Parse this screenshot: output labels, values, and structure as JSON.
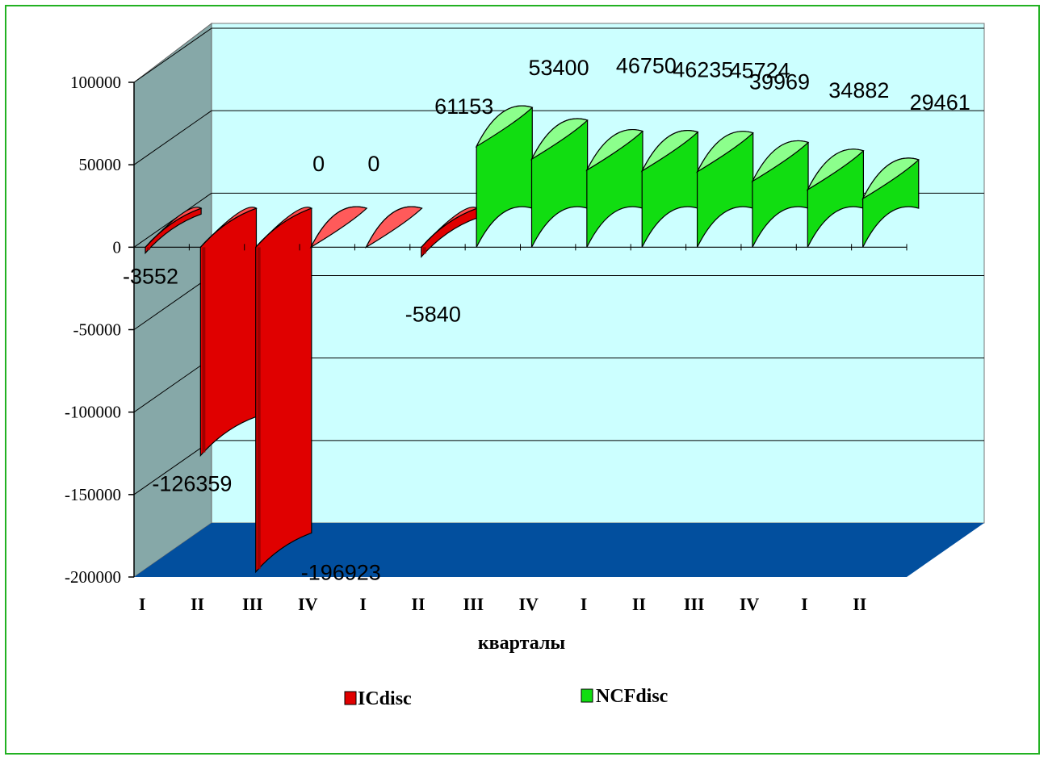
{
  "chart_data": {
    "type": "bar",
    "categories": [
      "I",
      "II",
      "III",
      "IV",
      "I",
      "II",
      "III",
      "IV",
      "I",
      "II",
      "III",
      "IV",
      "I",
      "II"
    ],
    "series": [
      {
        "name": "ICdisc",
        "color": "#e00000",
        "values": [
          -3552,
          -126359,
          -196923,
          0,
          0,
          -5840,
          null,
          null,
          null,
          null,
          null,
          null,
          null,
          null
        ],
        "labels": [
          "-3552",
          "-126359",
          "-196923",
          "0",
          "0",
          "-5840",
          "",
          "",
          "",
          "",
          "",
          "",
          "",
          ""
        ]
      },
      {
        "name": "NCFdisc",
        "color": "#11dd11",
        "values": [
          null,
          null,
          null,
          null,
          null,
          null,
          61153,
          53400,
          46750,
          46235,
          45724,
          39969,
          34882,
          29461
        ],
        "labels": [
          "",
          "",
          "",
          "",
          "",
          "",
          "61153",
          "53400",
          "46750",
          "46235",
          "45724",
          "39969",
          "34882",
          "29461"
        ]
      }
    ],
    "xlabel": "кварталы",
    "ylabel": "",
    "ylim": [
      -200000,
      100000
    ],
    "yticks": [
      "100000",
      "50000",
      "0",
      "-50000",
      "-100000",
      "-150000",
      "-200000"
    ],
    "ytick_values": [
      100000,
      50000,
      0,
      -50000,
      -100000,
      -150000,
      -200000
    ],
    "grid": true,
    "legend": "bottom",
    "colors": {
      "wall": "#ccffff",
      "floor": "#024f9e",
      "side_wall": "#86a8a8",
      "frame": "#22b122"
    }
  }
}
